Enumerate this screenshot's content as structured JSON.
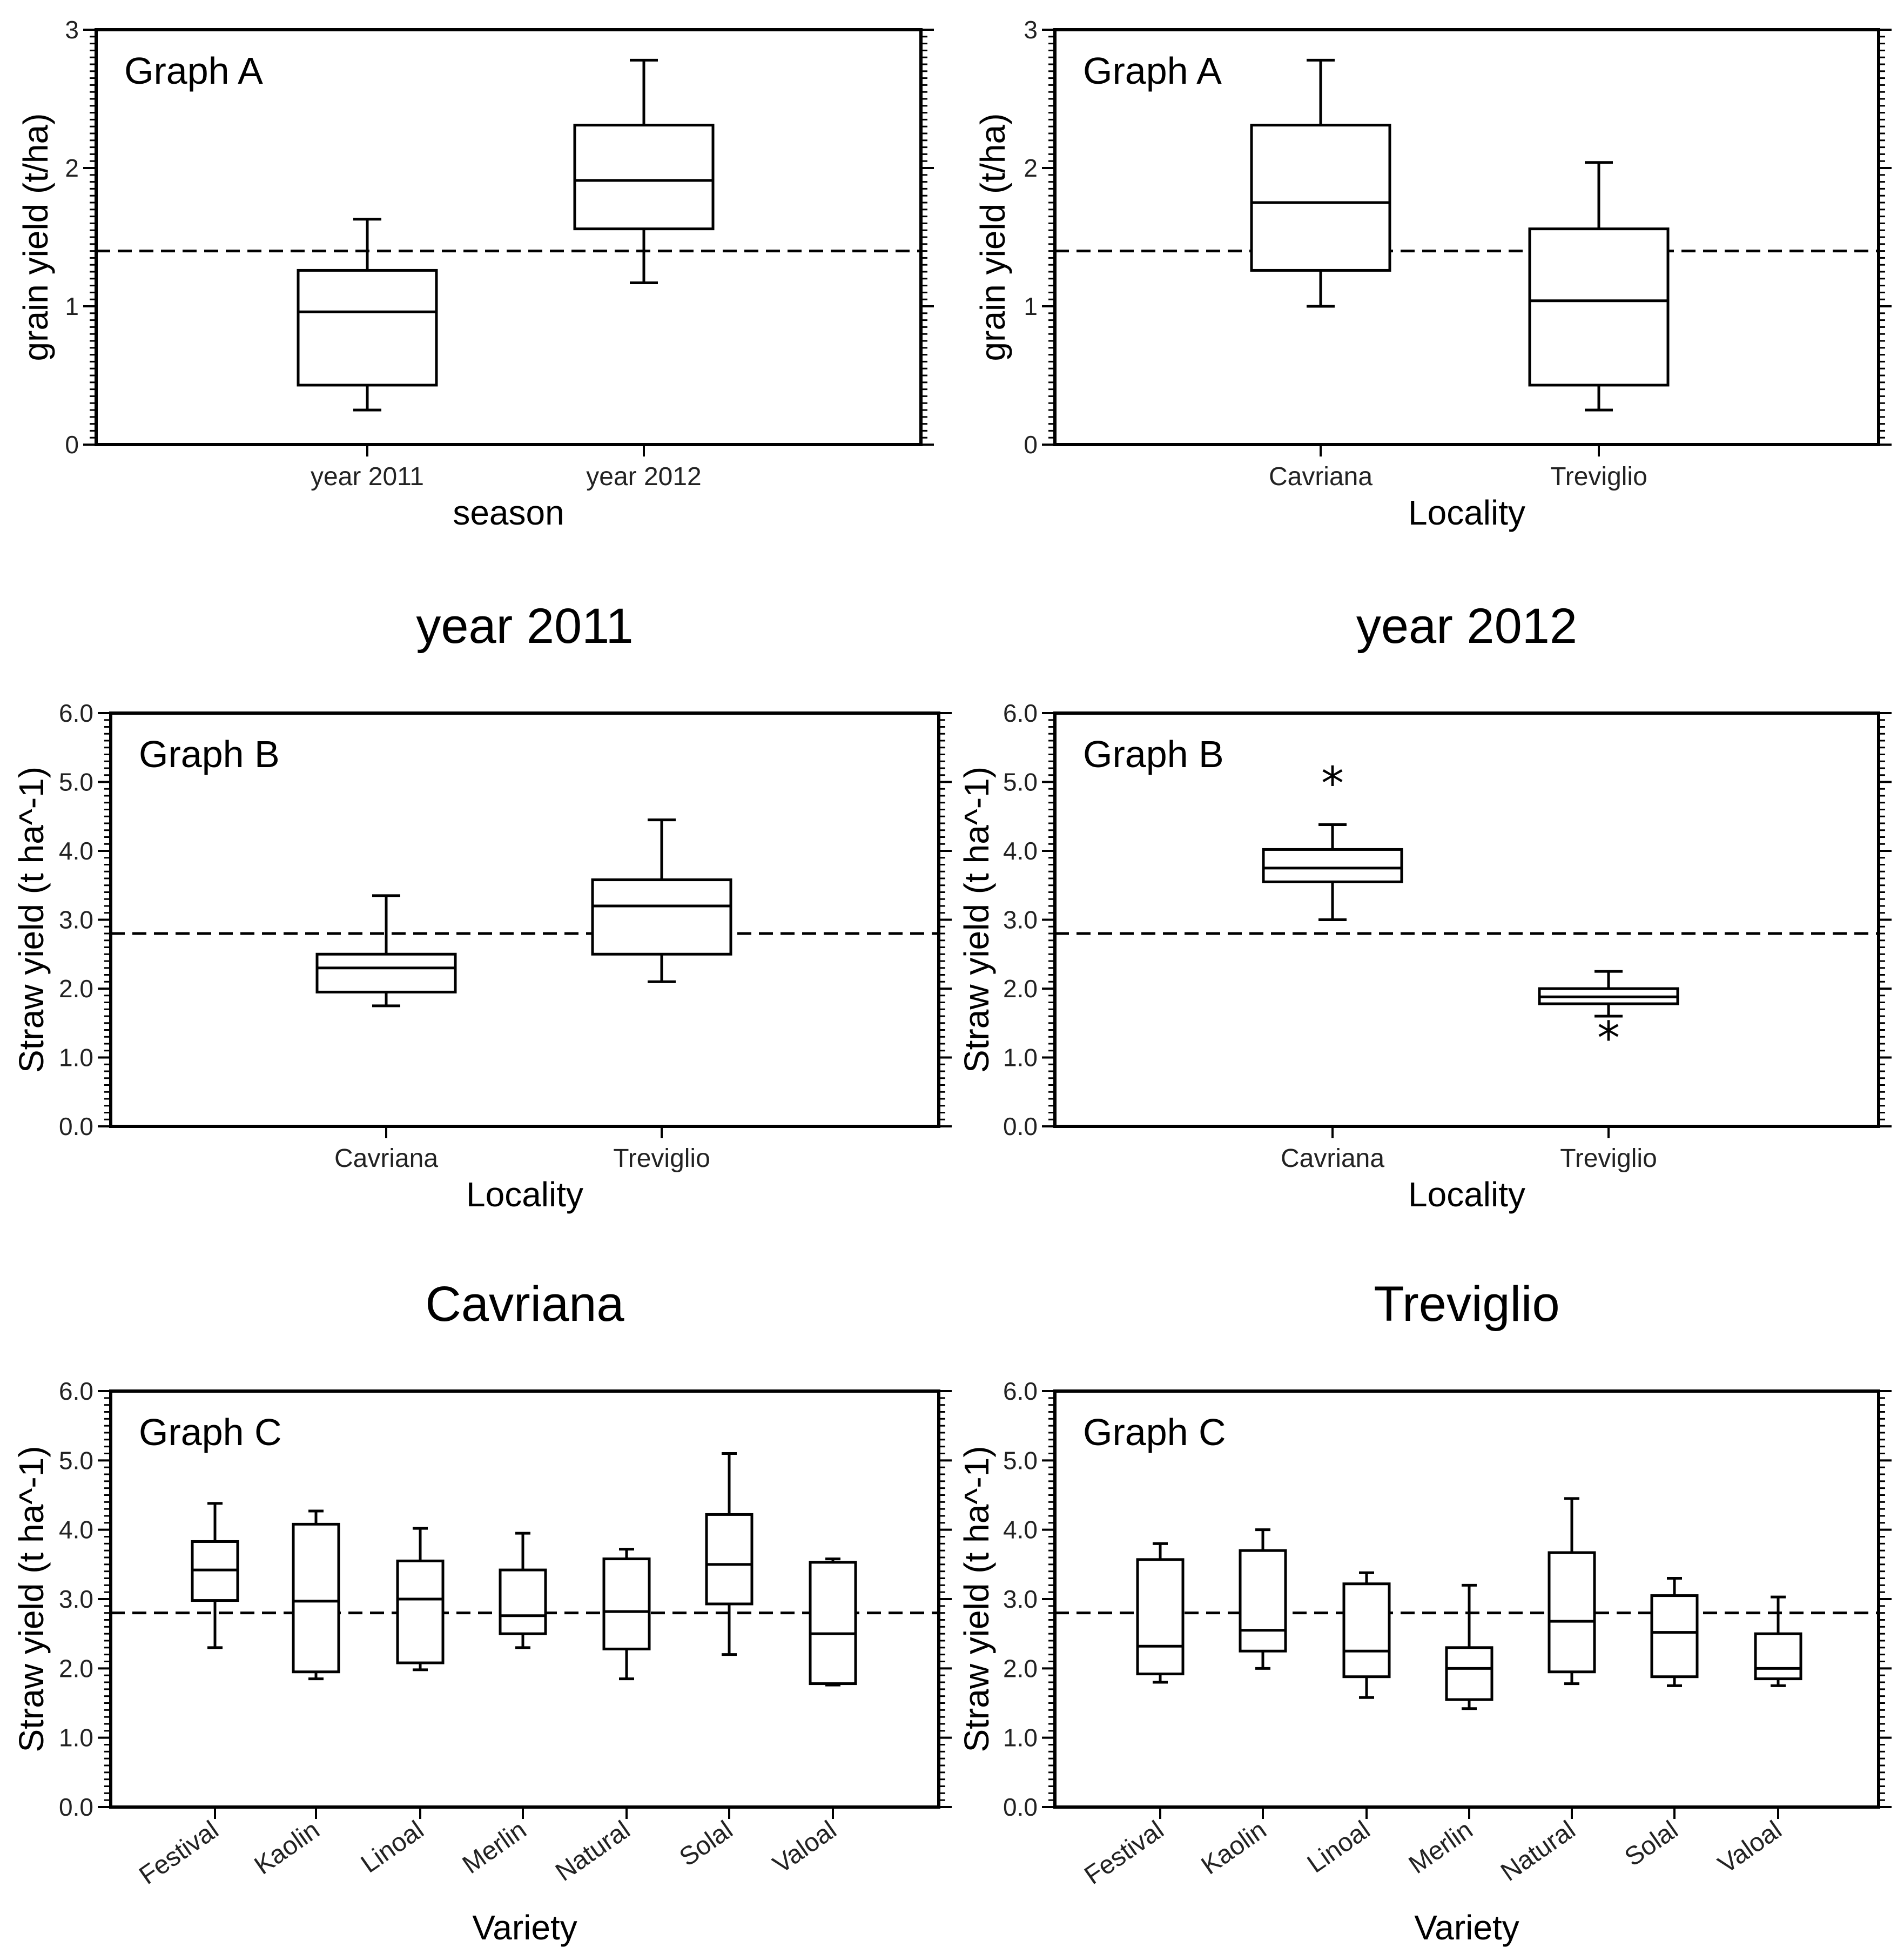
{
  "chart_data": [
    {
      "type": "boxplot",
      "panel_label": "Graph A",
      "title": "",
      "xlabel": "season",
      "ylabel": "grain yield (t/ha)",
      "ylim": [
        0,
        3
      ],
      "yticks": [
        "0",
        "1",
        "2",
        "3"
      ],
      "reference_line": 1.4,
      "categories": [
        "year 2011",
        "year 2012"
      ],
      "boxes": [
        {
          "min": 0.25,
          "q1": 0.43,
          "median": 0.96,
          "q3": 1.26,
          "max": 1.63
        },
        {
          "min": 1.17,
          "q1": 1.56,
          "median": 1.91,
          "q3": 2.31,
          "max": 2.78
        }
      ]
    },
    {
      "type": "boxplot",
      "panel_label": "Graph A",
      "title": "",
      "xlabel": "Locality",
      "ylabel": "grain yield (t/ha)",
      "ylim": [
        0,
        3
      ],
      "yticks": [
        "0",
        "1",
        "2",
        "3"
      ],
      "reference_line": 1.4,
      "categories": [
        "Cavriana",
        "Treviglio"
      ],
      "boxes": [
        {
          "min": 1.0,
          "q1": 1.26,
          "median": 1.75,
          "q3": 2.31,
          "max": 2.78
        },
        {
          "min": 0.25,
          "q1": 0.43,
          "median": 1.04,
          "q3": 1.56,
          "max": 2.04
        }
      ]
    },
    {
      "type": "boxplot",
      "panel_label": "Graph B",
      "title": "year 2011",
      "xlabel": "Locality",
      "ylabel": "Straw yield (t ha^-1)",
      "ylim": [
        0,
        6
      ],
      "yticks": [
        "0.0",
        "1.0",
        "2.0",
        "3.0",
        "4.0",
        "5.0",
        "6.0"
      ],
      "reference_line": 2.8,
      "categories": [
        "Cavriana",
        "Treviglio"
      ],
      "boxes": [
        {
          "min": 1.75,
          "q1": 1.95,
          "median": 2.3,
          "q3": 2.5,
          "max": 3.35
        },
        {
          "min": 2.1,
          "q1": 2.5,
          "median": 3.2,
          "q3": 3.58,
          "max": 4.45
        }
      ]
    },
    {
      "type": "boxplot",
      "panel_label": "Graph B",
      "title": "year 2012",
      "xlabel": "Locality",
      "ylabel": "Straw yield (t ha^-1)",
      "ylim": [
        0,
        6
      ],
      "yticks": [
        "0.0",
        "1.0",
        "2.0",
        "3.0",
        "4.0",
        "5.0",
        "6.0"
      ],
      "reference_line": 2.8,
      "categories": [
        "Cavriana",
        "Treviglio"
      ],
      "boxes": [
        {
          "min": 3.0,
          "q1": 3.55,
          "median": 3.75,
          "q3": 4.02,
          "max": 4.38,
          "outliers": [
            5.1
          ]
        },
        {
          "min": 1.6,
          "q1": 1.78,
          "median": 1.88,
          "q3": 2.0,
          "max": 2.25,
          "outliers": [
            1.4
          ]
        }
      ]
    },
    {
      "type": "boxplot",
      "panel_label": "Graph C",
      "title": "Cavriana",
      "xlabel": "Variety",
      "ylabel": "Straw yield (t ha^-1)",
      "ylim": [
        0,
        6
      ],
      "yticks": [
        "0.0",
        "1.0",
        "2.0",
        "3.0",
        "4.0",
        "5.0",
        "6.0"
      ],
      "reference_line": 2.8,
      "rotated_labels": true,
      "categories": [
        "Festival",
        "Kaolin",
        "Linoal",
        "Merlin",
        "Natural",
        "Solal",
        "Valoal"
      ],
      "boxes": [
        {
          "min": 2.3,
          "q1": 2.98,
          "median": 3.42,
          "q3": 3.83,
          "max": 4.38
        },
        {
          "min": 1.85,
          "q1": 1.95,
          "median": 2.97,
          "q3": 4.08,
          "max": 4.27
        },
        {
          "min": 1.98,
          "q1": 2.08,
          "median": 3.0,
          "q3": 3.55,
          "max": 4.02
        },
        {
          "min": 2.3,
          "q1": 2.5,
          "median": 2.76,
          "q3": 3.42,
          "max": 3.95
        },
        {
          "min": 1.85,
          "q1": 2.28,
          "median": 2.82,
          "q3": 3.58,
          "max": 3.72
        },
        {
          "min": 2.2,
          "q1": 2.93,
          "median": 3.5,
          "q3": 4.22,
          "max": 5.1
        },
        {
          "min": 1.76,
          "q1": 1.78,
          "median": 2.5,
          "q3": 3.53,
          "max": 3.58
        }
      ]
    },
    {
      "type": "boxplot",
      "panel_label": "Graph C",
      "title": "Treviglio",
      "xlabel": "Variety",
      "ylabel": "Straw yield (t ha^-1)",
      "ylim": [
        0,
        6
      ],
      "yticks": [
        "0.0",
        "1.0",
        "2.0",
        "3.0",
        "4.0",
        "5.0",
        "6.0"
      ],
      "reference_line": 2.8,
      "rotated_labels": true,
      "categories": [
        "Festival",
        "Kaolin",
        "Linoal",
        "Merlin",
        "Natural",
        "Solal",
        "Valoal"
      ],
      "boxes": [
        {
          "min": 1.8,
          "q1": 1.92,
          "median": 2.32,
          "q3": 3.57,
          "max": 3.8
        },
        {
          "min": 2.0,
          "q1": 2.25,
          "median": 2.55,
          "q3": 3.7,
          "max": 4.0
        },
        {
          "min": 1.58,
          "q1": 1.88,
          "median": 2.25,
          "q3": 3.22,
          "max": 3.38
        },
        {
          "min": 1.42,
          "q1": 1.55,
          "median": 2.0,
          "q3": 2.3,
          "max": 3.2
        },
        {
          "min": 1.78,
          "q1": 1.95,
          "median": 2.68,
          "q3": 3.67,
          "max": 4.45
        },
        {
          "min": 1.75,
          "q1": 1.88,
          "median": 2.52,
          "q3": 3.05,
          "max": 3.3
        },
        {
          "min": 1.75,
          "q1": 1.85,
          "median": 2.0,
          "q3": 2.5,
          "max": 3.03
        }
      ]
    }
  ]
}
